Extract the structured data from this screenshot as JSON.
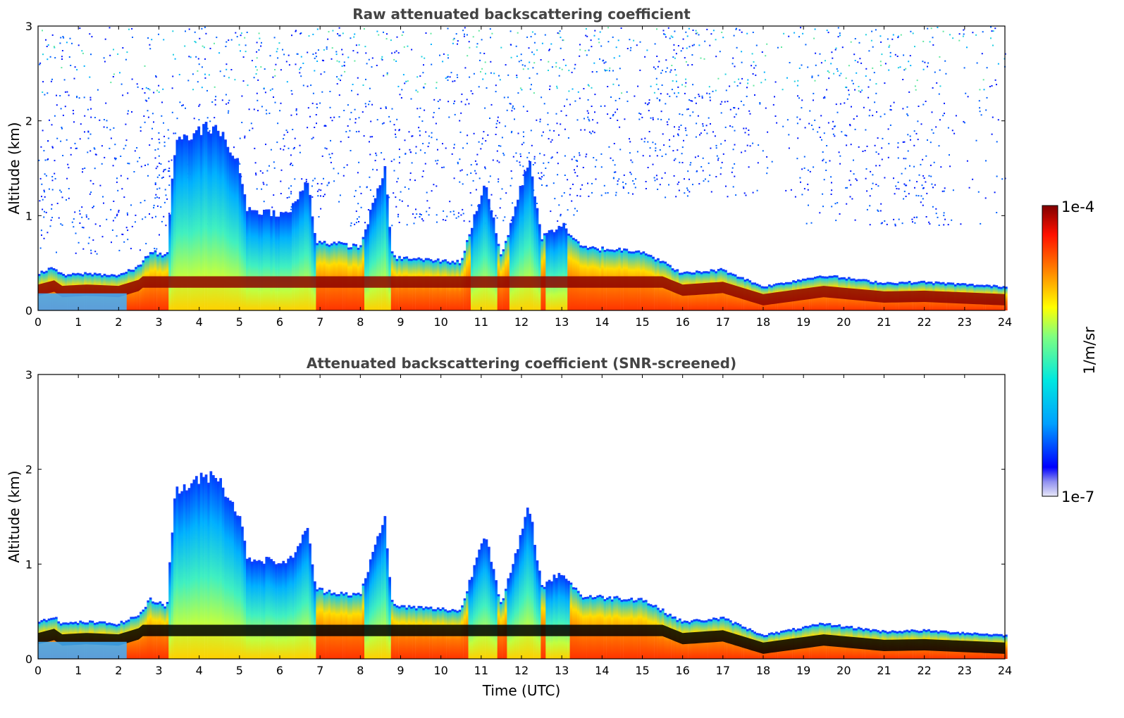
{
  "chart_data": [
    {
      "type": "heatmap",
      "title": "Raw attenuated backscattering coefficient",
      "xlabel": "",
      "ylabel": "Altitude (km)",
      "xlim": [
        0,
        24
      ],
      "ylim": [
        0,
        3
      ],
      "x_ticks": [
        "0",
        "1",
        "2",
        "3",
        "4",
        "5",
        "6",
        "7",
        "8",
        "9",
        "10",
        "11",
        "12",
        "13",
        "14",
        "15",
        "16",
        "17",
        "18",
        "19",
        "20",
        "21",
        "22",
        "23",
        "24"
      ],
      "y_ticks": [
        "0",
        "1",
        "2",
        "3"
      ],
      "screened": false,
      "layer_top_km": [
        {
          "t": 0,
          "h": 0.38
        },
        {
          "t": 0.4,
          "h": 0.44
        },
        {
          "t": 0.6,
          "h": 0.36
        },
        {
          "t": 1.2,
          "h": 0.38
        },
        {
          "t": 2,
          "h": 0.36
        },
        {
          "t": 2.5,
          "h": 0.45
        },
        {
          "t": 2.8,
          "h": 0.62
        },
        {
          "t": 3.2,
          "h": 0.55
        },
        {
          "t": 3.4,
          "h": 1.75
        },
        {
          "t": 4.4,
          "h": 1.95
        },
        {
          "t": 5.0,
          "h": 1.5
        },
        {
          "t": 5.2,
          "h": 1.05
        },
        {
          "t": 6.2,
          "h": 1.0
        },
        {
          "t": 6.7,
          "h": 1.35
        },
        {
          "t": 6.9,
          "h": 0.72
        },
        {
          "t": 8.0,
          "h": 0.66
        },
        {
          "t": 8.6,
          "h": 1.5
        },
        {
          "t": 8.8,
          "h": 0.55
        },
        {
          "t": 10.5,
          "h": 0.5
        },
        {
          "t": 11.1,
          "h": 1.35
        },
        {
          "t": 11.5,
          "h": 0.55
        },
        {
          "t": 12.2,
          "h": 1.6
        },
        {
          "t": 12.5,
          "h": 0.75
        },
        {
          "t": 13.0,
          "h": 0.9
        },
        {
          "t": 13.5,
          "h": 0.65
        },
        {
          "t": 15.0,
          "h": 0.62
        },
        {
          "t": 16.0,
          "h": 0.38
        },
        {
          "t": 17.0,
          "h": 0.42
        },
        {
          "t": 18.0,
          "h": 0.24
        },
        {
          "t": 19.5,
          "h": 0.36
        },
        {
          "t": 21.0,
          "h": 0.28
        },
        {
          "t": 22.0,
          "h": 0.29
        },
        {
          "t": 24.0,
          "h": 0.24
        }
      ],
      "colorbar": {
        "min_label": "1e-7",
        "max_label": "1e-4",
        "units": "1/m/sr",
        "scale": "log"
      }
    },
    {
      "type": "heatmap",
      "title": "Attenuated backscattering coefficient (SNR-screened)",
      "xlabel": "Time (UTC)",
      "ylabel": "Altitude (km)",
      "xlim": [
        0,
        24
      ],
      "ylim": [
        0,
        3
      ],
      "x_ticks": [
        "0",
        "1",
        "2",
        "3",
        "4",
        "5",
        "6",
        "7",
        "8",
        "9",
        "10",
        "11",
        "12",
        "13",
        "14",
        "15",
        "16",
        "17",
        "18",
        "19",
        "20",
        "21",
        "22",
        "23",
        "24"
      ],
      "y_ticks": [
        "0",
        "1",
        "2",
        "3"
      ],
      "screened": true,
      "layer_top_km": [
        {
          "t": 0,
          "h": 0.38
        },
        {
          "t": 0.4,
          "h": 0.44
        },
        {
          "t": 0.6,
          "h": 0.36
        },
        {
          "t": 1.2,
          "h": 0.38
        },
        {
          "t": 2,
          "h": 0.36
        },
        {
          "t": 2.5,
          "h": 0.45
        },
        {
          "t": 2.8,
          "h": 0.62
        },
        {
          "t": 3.2,
          "h": 0.55
        },
        {
          "t": 3.4,
          "h": 1.75
        },
        {
          "t": 4.4,
          "h": 1.95
        },
        {
          "t": 5.0,
          "h": 1.5
        },
        {
          "t": 5.2,
          "h": 1.05
        },
        {
          "t": 6.2,
          "h": 1.0
        },
        {
          "t": 6.7,
          "h": 1.35
        },
        {
          "t": 6.9,
          "h": 0.72
        },
        {
          "t": 8.0,
          "h": 0.66
        },
        {
          "t": 8.6,
          "h": 1.5
        },
        {
          "t": 8.8,
          "h": 0.55
        },
        {
          "t": 10.5,
          "h": 0.5
        },
        {
          "t": 11.1,
          "h": 1.35
        },
        {
          "t": 11.5,
          "h": 0.55
        },
        {
          "t": 12.2,
          "h": 1.6
        },
        {
          "t": 12.5,
          "h": 0.75
        },
        {
          "t": 13.0,
          "h": 0.9
        },
        {
          "t": 13.5,
          "h": 0.65
        },
        {
          "t": 15.0,
          "h": 0.62
        },
        {
          "t": 16.0,
          "h": 0.38
        },
        {
          "t": 17.0,
          "h": 0.42
        },
        {
          "t": 18.0,
          "h": 0.24
        },
        {
          "t": 19.5,
          "h": 0.36
        },
        {
          "t": 21.0,
          "h": 0.28
        },
        {
          "t": 22.0,
          "h": 0.29
        },
        {
          "t": 24.0,
          "h": 0.24
        }
      ],
      "colorbar": {
        "min_label": "1e-7",
        "max_label": "1e-4",
        "units": "1/m/sr",
        "scale": "log"
      }
    }
  ],
  "colorbar": {
    "min_label": "1e-7",
    "max_label": "1e-4",
    "units": "1/m/sr"
  },
  "colormap_stops": [
    "#e0e0f8",
    "#0000ff",
    "#00a0ff",
    "#00e0e0",
    "#80ff80",
    "#ffff00",
    "#ff8000",
    "#ff0000",
    "#800000"
  ]
}
